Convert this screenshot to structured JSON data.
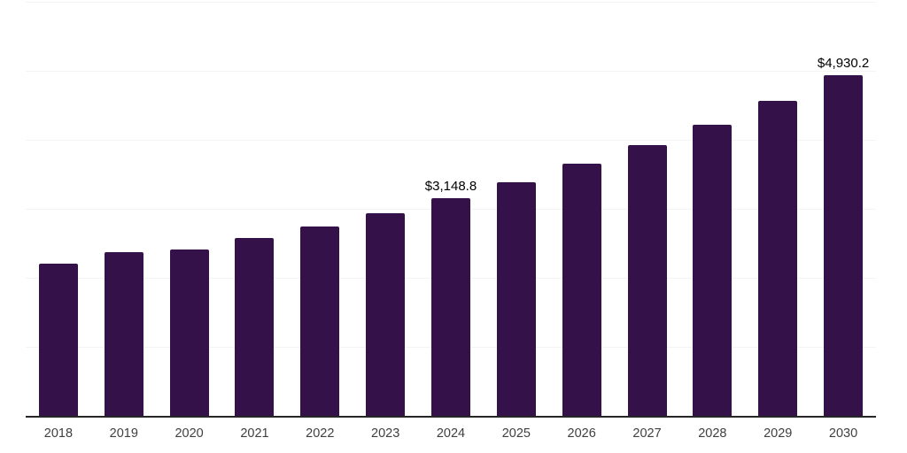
{
  "chart_data": {
    "type": "bar",
    "categories": [
      "2018",
      "2019",
      "2020",
      "2021",
      "2022",
      "2023",
      "2024",
      "2025",
      "2026",
      "2027",
      "2028",
      "2029",
      "2030"
    ],
    "values": [
      2210,
      2370,
      2410,
      2580,
      2740,
      2930,
      3148.8,
      3380,
      3650,
      3925,
      4220,
      4560,
      4930.2
    ],
    "point_labels": [
      "",
      "",
      "",
      "",
      "",
      "",
      "$3,148.8",
      "",
      "",
      "",
      "",
      "",
      "$4,930.2"
    ],
    "title": "",
    "xlabel": "",
    "ylabel": "",
    "ylim": [
      0,
      6000
    ],
    "gridline_interval": 1000,
    "grid": "horizontal-only",
    "legend": "none",
    "y_axis_tick_labels_visible": false,
    "colors": {
      "bar": "#351149",
      "axis": "#262626",
      "gridline": "#f4f4f4",
      "value_label": "#000000",
      "tick_label": "#404040",
      "background": "#ffffff"
    }
  }
}
